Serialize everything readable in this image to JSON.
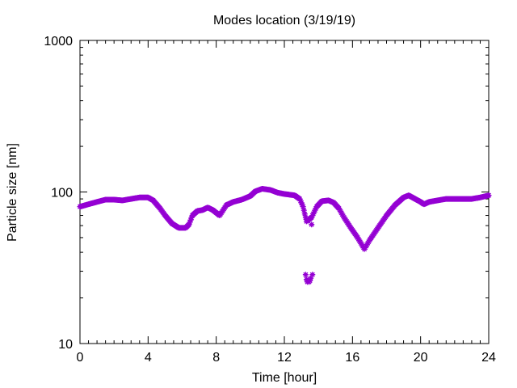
{
  "chart_data": {
    "type": "scatter",
    "title": "Modes location (3/19/19)",
    "xlabel": "Time [hour]",
    "ylabel": "Particle size [nm]",
    "xlim": [
      0,
      24
    ],
    "ylim": [
      10,
      1000
    ],
    "yscale": "log",
    "grid": false,
    "legend": "none",
    "marker": "star",
    "color": "#9400D3",
    "xticks": [
      "0",
      "4",
      "8",
      "12",
      "16",
      "20",
      "24"
    ],
    "xtick_values": [
      0,
      4,
      8,
      12,
      16,
      20,
      24
    ],
    "yticks": [
      "10",
      "100",
      "1000"
    ],
    "ytick_values": [
      10,
      100,
      1000
    ],
    "anchors": [
      [
        0.0,
        80
      ],
      [
        0.5,
        83
      ],
      [
        1.0,
        86
      ],
      [
        1.5,
        89
      ],
      [
        2.0,
        89
      ],
      [
        2.5,
        88
      ],
      [
        3.0,
        90
      ],
      [
        3.5,
        92
      ],
      [
        4.0,
        92
      ],
      [
        4.3,
        88
      ],
      [
        4.7,
        78
      ],
      [
        5.0,
        70
      ],
      [
        5.4,
        62
      ],
      [
        5.8,
        58
      ],
      [
        6.2,
        58
      ],
      [
        6.4,
        61
      ],
      [
        6.6,
        70
      ],
      [
        6.9,
        75
      ],
      [
        7.2,
        76
      ],
      [
        7.5,
        79
      ],
      [
        7.8,
        76
      ],
      [
        8.2,
        70
      ],
      [
        8.6,
        82
      ],
      [
        9.0,
        86
      ],
      [
        9.5,
        89
      ],
      [
        10.0,
        94
      ],
      [
        10.3,
        101
      ],
      [
        10.7,
        105
      ],
      [
        11.2,
        103
      ],
      [
        11.6,
        99
      ],
      [
        12.0,
        97
      ],
      [
        12.6,
        95
      ],
      [
        12.9,
        90
      ],
      [
        13.1,
        80
      ],
      [
        13.3,
        64
      ],
      [
        13.6,
        68
      ],
      [
        13.9,
        80
      ],
      [
        14.2,
        87
      ],
      [
        14.6,
        88
      ],
      [
        14.9,
        85
      ],
      [
        15.2,
        78
      ],
      [
        15.5,
        68
      ],
      [
        15.9,
        58
      ],
      [
        16.3,
        50
      ],
      [
        16.7,
        42
      ],
      [
        17.0,
        48
      ],
      [
        17.5,
        58
      ],
      [
        18.0,
        70
      ],
      [
        18.5,
        82
      ],
      [
        19.0,
        92
      ],
      [
        19.3,
        95
      ],
      [
        19.6,
        91
      ],
      [
        20.0,
        86
      ],
      [
        20.2,
        83
      ],
      [
        20.5,
        86
      ],
      [
        21.0,
        88
      ],
      [
        21.5,
        90
      ],
      [
        22.0,
        90
      ],
      [
        23.0,
        90
      ],
      [
        23.5,
        92
      ],
      [
        24.0,
        95
      ]
    ],
    "outliers": [
      [
        13.6,
        61
      ],
      [
        13.25,
        28.5
      ],
      [
        13.3,
        26.5
      ],
      [
        13.35,
        25.5
      ],
      [
        13.45,
        25.5
      ],
      [
        13.5,
        26
      ],
      [
        13.55,
        27
      ],
      [
        13.65,
        28.5
      ]
    ]
  }
}
